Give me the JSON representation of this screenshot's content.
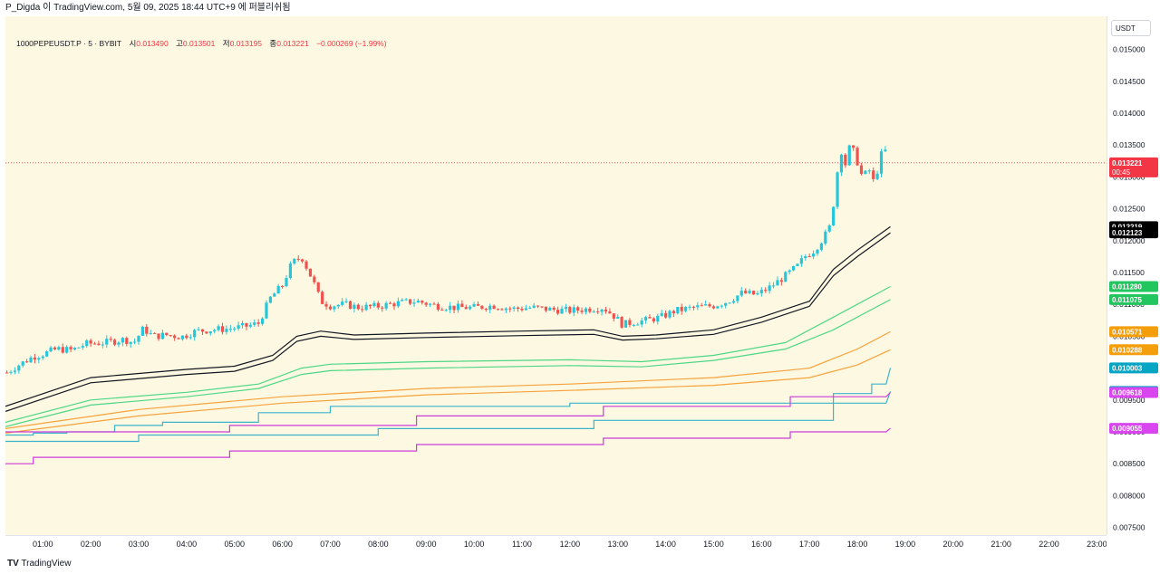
{
  "header": {
    "text": "P_Digda 이 TradingView.com, 5월 09, 2025 18:44 UTC+9 에 퍼블리쉬됨"
  },
  "legend": {
    "symbol": "1000PEPEUSDT.P · 5 · BYBIT",
    "open_label": "시",
    "open": "0.013490",
    "high_label": "고",
    "high": "0.013501",
    "low_label": "저",
    "low": "0.013195",
    "close_label": "종",
    "close": "0.013221",
    "change": "−0.000269 (−1.99%)"
  },
  "currency": "USDT",
  "footer": {
    "logo": "TV",
    "brand": "TradingView"
  },
  "colors": {
    "background": "#fdf8e1",
    "up": "#26c6da",
    "down": "#ef5350",
    "vwap": "#131722",
    "green": "#4cd787",
    "orange": "#f7a23c",
    "cyan": "#3bb3cc",
    "magenta": "#cc3bdc"
  },
  "chart_data": {
    "type": "candlestick",
    "timeframe": "5",
    "y_ticks": [
      "0.015000",
      "0.014500",
      "0.014000",
      "0.013500",
      "0.013000",
      "0.012500",
      "0.012000",
      "0.011500",
      "0.011000",
      "0.010500",
      "0.010000",
      "0.009500",
      "0.009000",
      "0.008500",
      "0.008000",
      "0.007500"
    ],
    "ylim": [
      0.00738,
      0.01552
    ],
    "x_ticks": [
      "01:00",
      "02:00",
      "03:00",
      "04:00",
      "05:00",
      "06:00",
      "07:00",
      "08:00",
      "09:00",
      "10:00",
      "11:00",
      "12:00",
      "13:00",
      "14:00",
      "15:00",
      "16:00",
      "17:00",
      "18:00",
      "19:00",
      "20:00",
      "21:00",
      "22:00",
      "23:00"
    ],
    "x_range_hours": [
      0.22,
      23.2
    ],
    "last_price_label": "0.013221",
    "countdown": "00:45",
    "price_labels": [
      {
        "text": "0.012219",
        "value": 0.012219,
        "color": "#000000"
      },
      {
        "text": "0.012123",
        "value": 0.012123,
        "color": "#000000"
      },
      {
        "text": "0.011280",
        "value": 0.01128,
        "color": "#22c55e"
      },
      {
        "text": "0.011075",
        "value": 0.011075,
        "color": "#22c55e"
      },
      {
        "text": "0.010571",
        "value": 0.010571,
        "color": "#f59e0b"
      },
      {
        "text": "0.010288",
        "value": 0.010288,
        "color": "#f59e0b"
      },
      {
        "text": "0.010003",
        "value": 0.010003,
        "color": "#06a5c4"
      },
      {
        "text": "0.009634",
        "value": 0.009634,
        "color": "#06a5c4"
      },
      {
        "text": "0.009618",
        "value": 0.009618,
        "color": "#d946ef"
      },
      {
        "text": "0.009055",
        "value": 0.009055,
        "color": "#d946ef"
      }
    ],
    "close_path": [
      [
        0.25,
        0.00993
      ],
      [
        0.5,
        0.01005
      ],
      [
        0.8,
        0.01018
      ],
      [
        1.0,
        0.01022
      ],
      [
        1.3,
        0.0103
      ],
      [
        1.6,
        0.01028
      ],
      [
        1.9,
        0.01038
      ],
      [
        2.3,
        0.0104
      ],
      [
        2.7,
        0.01045
      ],
      [
        2.9,
        0.0104
      ],
      [
        3.1,
        0.01062
      ],
      [
        3.3,
        0.0105
      ],
      [
        3.6,
        0.01052
      ],
      [
        3.9,
        0.01049
      ],
      [
        4.2,
        0.01058
      ],
      [
        4.5,
        0.0106
      ],
      [
        4.9,
        0.01062
      ],
      [
        5.2,
        0.01065
      ],
      [
        5.5,
        0.0107
      ],
      [
        5.75,
        0.0111
      ],
      [
        6.0,
        0.0113
      ],
      [
        6.2,
        0.01165
      ],
      [
        6.4,
        0.01175
      ],
      [
        6.65,
        0.01135
      ],
      [
        6.8,
        0.01105
      ],
      [
        7.0,
        0.01098
      ],
      [
        7.3,
        0.011
      ],
      [
        7.6,
        0.01095
      ],
      [
        8.0,
        0.01097
      ],
      [
        8.4,
        0.01102
      ],
      [
        8.8,
        0.01105
      ],
      [
        9.2,
        0.01098
      ],
      [
        9.6,
        0.01095
      ],
      [
        10.0,
        0.01095
      ],
      [
        10.4,
        0.01098
      ],
      [
        10.8,
        0.01093
      ],
      [
        11.2,
        0.01095
      ],
      [
        11.6,
        0.01092
      ],
      [
        12.0,
        0.0109
      ],
      [
        12.4,
        0.01093
      ],
      [
        12.7,
        0.01095
      ],
      [
        12.95,
        0.0108
      ],
      [
        13.1,
        0.01068
      ],
      [
        13.3,
        0.01072
      ],
      [
        13.6,
        0.01075
      ],
      [
        13.9,
        0.0108
      ],
      [
        14.2,
        0.0109
      ],
      [
        14.6,
        0.01095
      ],
      [
        15.0,
        0.01098
      ],
      [
        15.3,
        0.01105
      ],
      [
        15.6,
        0.01118
      ],
      [
        15.9,
        0.01115
      ],
      [
        16.2,
        0.01128
      ],
      [
        16.5,
        0.01145
      ],
      [
        16.75,
        0.0116
      ],
      [
        16.9,
        0.01175
      ],
      [
        17.1,
        0.01185
      ],
      [
        17.3,
        0.01205
      ],
      [
        17.45,
        0.01225
      ],
      [
        17.55,
        0.0129
      ],
      [
        17.65,
        0.01345
      ],
      [
        17.75,
        0.0132
      ],
      [
        17.85,
        0.0135
      ],
      [
        17.95,
        0.01335
      ],
      [
        18.1,
        0.013
      ],
      [
        18.25,
        0.0131
      ],
      [
        18.35,
        0.0129
      ],
      [
        18.45,
        0.0132
      ],
      [
        18.55,
        0.0135
      ],
      [
        18.65,
        0.01322
      ]
    ],
    "series": [
      {
        "name": "",
        "color": "#131722",
        "values": [
          [
            0.22,
            0.0094
          ],
          [
            2.0,
            0.00985
          ],
          [
            4.0,
            0.00998
          ],
          [
            5.0,
            0.01003
          ],
          [
            5.8,
            0.0102
          ],
          [
            6.3,
            0.0105
          ],
          [
            6.8,
            0.01058
          ],
          [
            7.5,
            0.01052
          ],
          [
            9.0,
            0.01055
          ],
          [
            11.0,
            0.01058
          ],
          [
            12.5,
            0.0106
          ],
          [
            13.1,
            0.0105
          ],
          [
            13.8,
            0.01052
          ],
          [
            15.0,
            0.0106
          ],
          [
            16.0,
            0.0108
          ],
          [
            17.0,
            0.01105
          ],
          [
            17.5,
            0.01155
          ],
          [
            18.0,
            0.01185
          ],
          [
            18.69,
            0.012219
          ]
        ]
      },
      {
        "name": "",
        "color": "#131722",
        "values": [
          [
            0.22,
            0.00932
          ],
          [
            2.0,
            0.00977
          ],
          [
            4.0,
            0.0099
          ],
          [
            5.0,
            0.00995
          ],
          [
            5.8,
            0.01012
          ],
          [
            6.3,
            0.01042
          ],
          [
            6.8,
            0.0105
          ],
          [
            7.5,
            0.01045
          ],
          [
            9.0,
            0.01048
          ],
          [
            11.0,
            0.01051
          ],
          [
            12.5,
            0.01053
          ],
          [
            13.1,
            0.01044
          ],
          [
            13.8,
            0.01046
          ],
          [
            15.0,
            0.01053
          ],
          [
            16.0,
            0.01072
          ],
          [
            17.0,
            0.01097
          ],
          [
            17.5,
            0.01145
          ],
          [
            18.0,
            0.01175
          ],
          [
            18.69,
            0.012123
          ]
        ]
      },
      {
        "name": "",
        "color": "#4cd787",
        "values": [
          [
            0.22,
            0.00915
          ],
          [
            2.0,
            0.0095
          ],
          [
            4.0,
            0.00962
          ],
          [
            5.5,
            0.00975
          ],
          [
            6.4,
            0.01
          ],
          [
            7.0,
            0.01006
          ],
          [
            9.0,
            0.0101
          ],
          [
            12.0,
            0.01013
          ],
          [
            13.5,
            0.0101
          ],
          [
            15.0,
            0.0102
          ],
          [
            16.5,
            0.0104
          ],
          [
            17.5,
            0.0108
          ],
          [
            18.69,
            0.01128
          ]
        ]
      },
      {
        "name": "",
        "color": "#4cd787",
        "values": [
          [
            0.22,
            0.00908
          ],
          [
            2.0,
            0.00942
          ],
          [
            4.0,
            0.00955
          ],
          [
            5.5,
            0.00968
          ],
          [
            6.4,
            0.0099
          ],
          [
            7.0,
            0.00996
          ],
          [
            9.0,
            0.01
          ],
          [
            12.0,
            0.01004
          ],
          [
            13.5,
            0.01002
          ],
          [
            15.0,
            0.01012
          ],
          [
            16.5,
            0.0103
          ],
          [
            17.5,
            0.0106
          ],
          [
            18.69,
            0.011075
          ]
        ]
      },
      {
        "name": "",
        "color": "#f7a23c",
        "values": [
          [
            0.22,
            0.00905
          ],
          [
            3.0,
            0.00935
          ],
          [
            6.0,
            0.00955
          ],
          [
            9.0,
            0.00968
          ],
          [
            12.0,
            0.00975
          ],
          [
            15.0,
            0.00985
          ],
          [
            17.0,
            0.01
          ],
          [
            18.0,
            0.0103
          ],
          [
            18.69,
            0.010571
          ]
        ]
      },
      {
        "name": "",
        "color": "#f7a23c",
        "values": [
          [
            0.22,
            0.00898
          ],
          [
            3.0,
            0.00925
          ],
          [
            6.0,
            0.00945
          ],
          [
            9.0,
            0.00958
          ],
          [
            12.0,
            0.00965
          ],
          [
            15.0,
            0.00973
          ],
          [
            17.0,
            0.00985
          ],
          [
            18.0,
            0.01005
          ],
          [
            18.69,
            0.010288
          ]
        ]
      },
      {
        "name": "",
        "color": "#3bb3cc",
        "values": [
          [
            0.22,
            0.00895
          ],
          [
            0.8,
            0.00895
          ],
          [
            0.8,
            0.00898
          ],
          [
            1.5,
            0.00898
          ],
          [
            1.5,
            0.009
          ],
          [
            2.5,
            0.009
          ],
          [
            2.5,
            0.0091
          ],
          [
            3.5,
            0.0091
          ],
          [
            3.5,
            0.00915
          ],
          [
            5.5,
            0.00915
          ],
          [
            5.5,
            0.0093
          ],
          [
            7.0,
            0.0093
          ],
          [
            7.0,
            0.0094
          ],
          [
            12.0,
            0.0094
          ],
          [
            12.0,
            0.00945
          ],
          [
            17.5,
            0.00945
          ],
          [
            17.5,
            0.0096
          ],
          [
            18.3,
            0.0096
          ],
          [
            18.3,
            0.00975
          ],
          [
            18.6,
            0.00975
          ],
          [
            18.69,
            0.010003
          ]
        ]
      },
      {
        "name": "",
        "color": "#3bb3cc",
        "values": [
          [
            0.22,
            0.00885
          ],
          [
            3.0,
            0.00885
          ],
          [
            3.0,
            0.00895
          ],
          [
            8.0,
            0.00895
          ],
          [
            8.0,
            0.00905
          ],
          [
            12.5,
            0.00905
          ],
          [
            12.5,
            0.00918
          ],
          [
            17.5,
            0.00918
          ],
          [
            17.5,
            0.00945
          ],
          [
            18.6,
            0.00945
          ],
          [
            18.69,
            0.009634
          ]
        ]
      },
      {
        "name": "",
        "color": "#cc3bdc",
        "values": [
          [
            0.22,
            0.009
          ],
          [
            4.9,
            0.009
          ],
          [
            4.9,
            0.0091
          ],
          [
            8.8,
            0.0091
          ],
          [
            8.8,
            0.00925
          ],
          [
            12.7,
            0.00925
          ],
          [
            12.7,
            0.0094
          ],
          [
            16.6,
            0.0094
          ],
          [
            16.6,
            0.00955
          ],
          [
            18.6,
            0.00955
          ],
          [
            18.69,
            0.009618
          ]
        ]
      },
      {
        "name": "",
        "color": "#cc3bdc",
        "values": [
          [
            0.22,
            0.0085
          ],
          [
            0.8,
            0.0085
          ],
          [
            0.8,
            0.0086
          ],
          [
            4.9,
            0.0086
          ],
          [
            4.9,
            0.0087
          ],
          [
            8.8,
            0.0087
          ],
          [
            8.8,
            0.0088
          ],
          [
            12.7,
            0.0088
          ],
          [
            12.7,
            0.0089
          ],
          [
            16.6,
            0.0089
          ],
          [
            16.6,
            0.009
          ],
          [
            18.6,
            0.009
          ],
          [
            18.69,
            0.009055
          ]
        ]
      }
    ]
  }
}
